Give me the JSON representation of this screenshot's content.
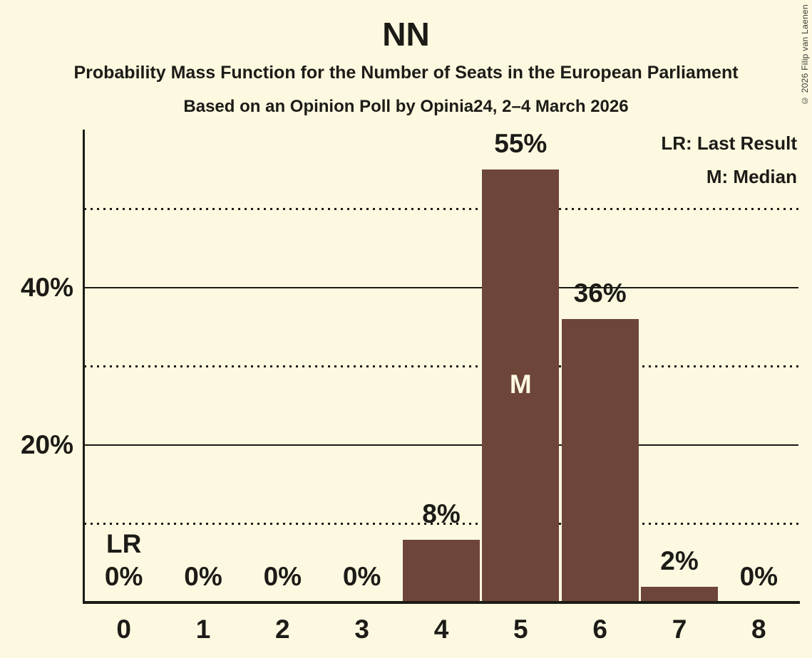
{
  "chart_data": {
    "type": "bar",
    "title": "NN",
    "subtitle": "Probability Mass Function for the Number of Seats in the European Parliament",
    "source": "Based on an Opinion Poll by Opinia24, 2–4 March 2026",
    "categories": [
      "0",
      "1",
      "2",
      "3",
      "4",
      "5",
      "6",
      "7",
      "8"
    ],
    "values": [
      0,
      0,
      0,
      0,
      8,
      55,
      36,
      2,
      0
    ],
    "value_labels": [
      "0%",
      "0%",
      "0%",
      "0%",
      "8%",
      "55%",
      "36%",
      "2%",
      "0%"
    ],
    "xlabel": "",
    "ylabel": "",
    "ylim": [
      0,
      60
    ],
    "yticks": [
      {
        "value": 20,
        "label": "20%"
      },
      {
        "value": 40,
        "label": "40%"
      }
    ],
    "gridlines_solid": [
      20,
      40
    ],
    "gridlines_dotted": [
      10,
      30,
      50
    ],
    "grid": true,
    "legend_position": "top-right",
    "legend": [
      "LR: Last Result",
      "M: Median"
    ],
    "annotations": {
      "last_result_label": "LR",
      "last_result_seat": "0",
      "median_label": "M",
      "median_seat": "5"
    },
    "copyright": "© 2026 Filip van Laenen",
    "colors": {
      "background": "#FDF9E0",
      "bar": "#6E4539",
      "text": "#1C1B17",
      "median_text": "#FDF9E0"
    }
  }
}
